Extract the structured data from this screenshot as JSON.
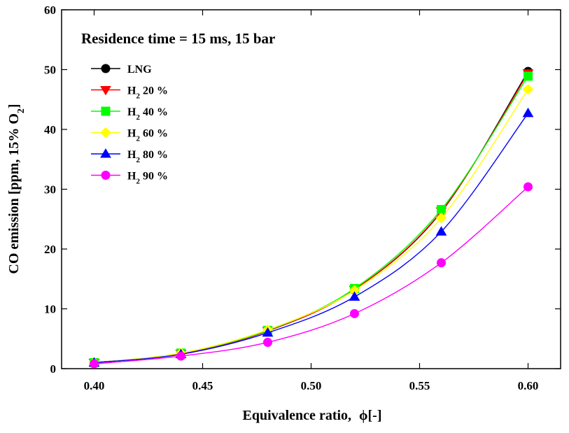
{
  "chart_data": {
    "type": "line",
    "title": "Residence time = 15 ms, 15 bar",
    "xlabel_main": "Equivalence ratio,",
    "xlabel_symbol": "ϕ",
    "xlabel_unit": "[-]",
    "ylabel": {
      "prefix": "CO emission [ppm, 15% O",
      "subscript": "2",
      "suffix": "]"
    },
    "xlim": [
      0.385,
      0.615
    ],
    "ylim": [
      0,
      60
    ],
    "x_ticks": [
      0.4,
      0.45,
      0.5,
      0.55,
      0.6
    ],
    "x_tick_labels": [
      "0.40",
      "0.45",
      "0.50",
      "0.55",
      "0.60"
    ],
    "y_ticks": [
      0,
      10,
      20,
      30,
      40,
      50,
      60
    ],
    "y_tick_labels": [
      "0",
      "10",
      "20",
      "30",
      "40",
      "50",
      "60"
    ],
    "grid": false,
    "legend_position": "top-left",
    "x": [
      0.4,
      0.44,
      0.48,
      0.52,
      0.56,
      0.6
    ],
    "series": [
      {
        "name": "LNG",
        "label_main": "LNG",
        "label_sub": "",
        "label_rest": "",
        "color": "#000000",
        "marker": "circle",
        "values": [
          1.0,
          2.5,
          6.3,
          13.2,
          26.2,
          49.7
        ]
      },
      {
        "name": "H2 20 %",
        "label_main": "H",
        "label_sub": "2",
        "label_rest": " 20 %",
        "color": "#ff0000",
        "marker": "triangle-down",
        "values": [
          1.0,
          2.5,
          6.3,
          13.2,
          26.3,
          49.4
        ]
      },
      {
        "name": "H2 40 %",
        "label_main": "H",
        "label_sub": "2",
        "label_rest": " 40 %",
        "color": "#00ff00",
        "marker": "square",
        "values": [
          1.0,
          2.6,
          6.4,
          13.4,
          26.6,
          48.9
        ]
      },
      {
        "name": "H2 60 %",
        "label_main": "H",
        "label_sub": "2",
        "label_rest": " 60 %",
        "color": "#ffff00",
        "marker": "diamond",
        "values": [
          1.0,
          2.6,
          6.5,
          13.1,
          25.2,
          46.7
        ]
      },
      {
        "name": "H2 80 %",
        "label_main": "H",
        "label_sub": "2",
        "label_rest": " 80 %",
        "color": "#0000ff",
        "marker": "triangle-up",
        "values": [
          1.0,
          2.4,
          6.0,
          12.0,
          22.9,
          42.7
        ]
      },
      {
        "name": "H2 90 %",
        "label_main": "H",
        "label_sub": "2",
        "label_rest": " 90 %",
        "color": "#ff00ff",
        "marker": "circle",
        "values": [
          0.8,
          2.1,
          4.4,
          9.2,
          17.7,
          30.4
        ]
      }
    ]
  }
}
